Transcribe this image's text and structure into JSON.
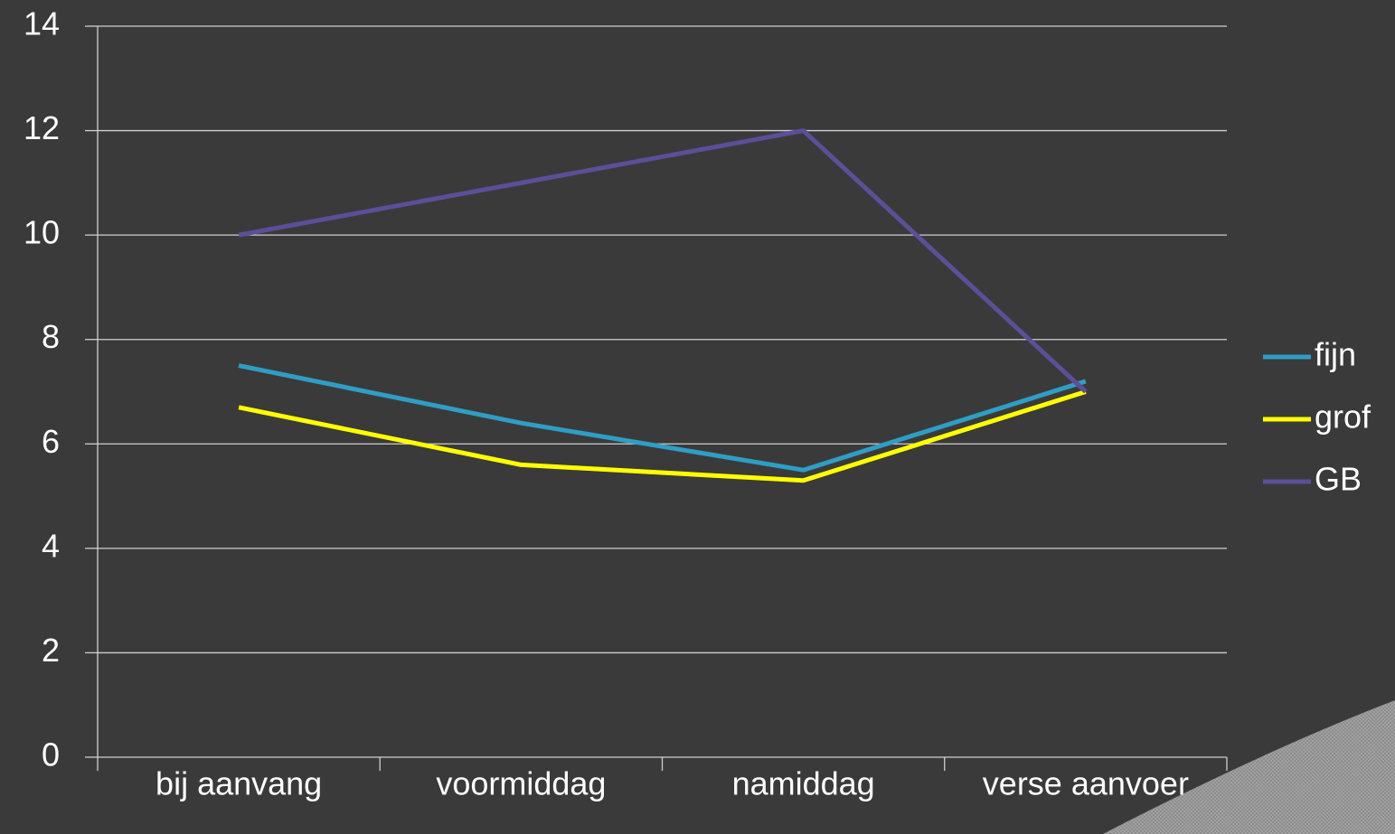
{
  "chart_data": {
    "type": "line",
    "categories": [
      "bij aanvang",
      "voormiddag",
      "namiddag",
      "verse aanvoer"
    ],
    "series": [
      {
        "name": "fijn",
        "color": "#2f9ec4",
        "values": [
          7.5,
          6.4,
          5.5,
          7.2
        ]
      },
      {
        "name": "grof",
        "color": "#ffff00",
        "values": [
          6.7,
          5.6,
          5.3,
          7.0
        ]
      },
      {
        "name": "GB",
        "color": "#5c4f98",
        "values": [
          10,
          11,
          12,
          7.0
        ]
      }
    ],
    "ylim": [
      0,
      14
    ],
    "yticks": [
      0,
      2,
      4,
      6,
      8,
      10,
      12,
      14
    ],
    "grid": true,
    "legend": "right"
  }
}
